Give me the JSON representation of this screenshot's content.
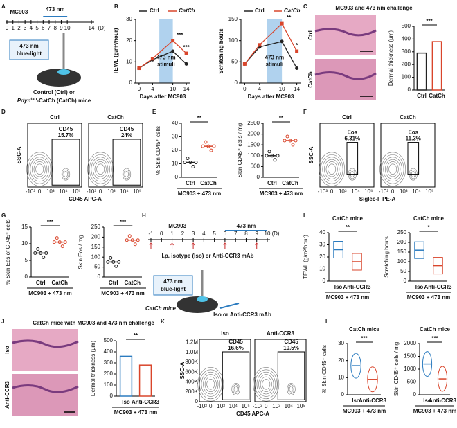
{
  "letters": [
    "A",
    "B",
    "C",
    "D",
    "E",
    "F",
    "G",
    "H",
    "I",
    "J",
    "K",
    "L"
  ],
  "a": {
    "mc903": "MC903",
    "light": "473 nm",
    "days": [
      0,
      1,
      2,
      3,
      4,
      5,
      6,
      7,
      8,
      9,
      10,
      14
    ],
    "unit": "(D)",
    "light_text": [
      "473 nm",
      "blue-light"
    ],
    "mice": [
      "Control (Ctrl) or",
      "Pdyn",
      "tau",
      "-CatCh (CatCh) mice"
    ]
  },
  "b": [
    {
      "type": "line",
      "ylabel": "TEWL (g/m²/hour)",
      "xlabel": "Days after MC903",
      "x": [
        0,
        4,
        10,
        14
      ],
      "xlim": [
        -1,
        15
      ],
      "xticks": [
        0,
        4,
        10,
        14
      ],
      "ylim": [
        0,
        30
      ],
      "yticks": [
        0,
        10,
        20,
        30
      ],
      "shade": [
        6,
        10
      ],
      "shade_label": [
        "473 nm",
        "stimuli"
      ],
      "series": [
        {
          "name": "Ctrl",
          "color": "#222222",
          "values": [
            7,
            11,
            15,
            9
          ]
        },
        {
          "name": "CatCh",
          "color": "#d9452b",
          "values": [
            7,
            11.5,
            20,
            14
          ]
        }
      ],
      "stars": [
        null,
        null,
        "***",
        "***"
      ]
    },
    {
      "type": "line",
      "ylabel": "Scratching bouts",
      "xlabel": "Days after MC903",
      "x": [
        0,
        4,
        10,
        14
      ],
      "xlim": [
        -1,
        15
      ],
      "xticks": [
        0,
        4,
        10,
        14
      ],
      "ylim": [
        0,
        150
      ],
      "yticks": [
        0,
        50,
        100,
        150
      ],
      "shade": [
        6,
        10
      ],
      "shade_label": [
        "473 nm",
        "stimuli"
      ],
      "series": [
        {
          "name": "Ctrl",
          "color": "#222222",
          "values": [
            45,
            85,
            98,
            35
          ]
        },
        {
          "name": "CatCh",
          "color": "#d9452b",
          "values": [
            45,
            90,
            140,
            75
          ]
        }
      ],
      "stars": [
        null,
        null,
        "**",
        "*"
      ]
    }
  ],
  "c": {
    "title": "MC903 and 473 nm challenge",
    "images": [
      "Ctrl",
      "CatCh"
    ],
    "chart": {
      "type": "bar",
      "ylabel": "Dermal thickness (μm)",
      "categories": [
        "Ctrl",
        "CatCh"
      ],
      "colors": [
        "#222222",
        "#d9452b"
      ],
      "values": [
        290,
        380
      ],
      "ylim": [
        0,
        500
      ],
      "yticks": [
        0,
        100,
        200,
        300,
        400,
        500
      ],
      "stars": "***"
    }
  },
  "d": {
    "ylabel": "SSC-A",
    "xlabel": "CD45 APC-A",
    "xticks": [
      "-10³",
      "0",
      "10³",
      "10⁴",
      "10⁵"
    ],
    "plots": [
      {
        "name": "Ctrl",
        "gate": "CD45",
        "pct": "15.7%"
      },
      {
        "name": "CatCh",
        "gate": "CD45",
        "pct": "24%"
      }
    ]
  },
  "e": [
    {
      "type": "dot",
      "ylabel": "% Skin CD45⁺ cells",
      "categories": [
        "Ctrl",
        "CatCh"
      ],
      "colors": [
        "#222222",
        "#d9452b"
      ],
      "values": [
        11,
        23
      ],
      "ylim": [
        0,
        40
      ],
      "yticks": [
        0,
        10,
        20,
        30,
        40
      ],
      "stars": "**",
      "xlabel": "MC903 + 473 nm"
    },
    {
      "type": "dot",
      "ylabel": "Skin CD45⁺ cells / mg",
      "categories": [
        "Ctrl",
        "CatCh"
      ],
      "colors": [
        "#222222",
        "#d9452b"
      ],
      "values": [
        1000,
        1700
      ],
      "ylim": [
        0,
        2500
      ],
      "yticks": [
        0,
        500,
        1000,
        1500,
        2000,
        2500
      ],
      "stars": "**",
      "xlabel": "MC903 + 473 nm"
    }
  ],
  "f": {
    "ylabel": "SSC-A",
    "xlabel": "Siglec-F PE-A",
    "xticks": [
      "-10³",
      "0",
      "10³",
      "10⁴",
      "10⁵"
    ],
    "plots": [
      {
        "name": "Ctrl",
        "gate": "Eos",
        "pct": "6.31%"
      },
      {
        "name": "CatCh",
        "gate": "Eos",
        "pct": "11.3%"
      }
    ]
  },
  "g": [
    {
      "type": "dot",
      "ylabel": "% Skin Eos of CD45⁺ cells",
      "categories": [
        "Ctrl",
        "CatCh"
      ],
      "colors": [
        "#222222",
        "#d9452b"
      ],
      "values": [
        7.2,
        10.5
      ],
      "ylim": [
        0,
        15
      ],
      "yticks": [
        0,
        5,
        10,
        15
      ],
      "stars": "***",
      "xlabel": "MC903 + 473 nm"
    },
    {
      "type": "dot",
      "ylabel": "Skin Eos / mg",
      "categories": [
        "Ctrl",
        "CatCh"
      ],
      "colors": [
        "#222222",
        "#d9452b"
      ],
      "values": [
        75,
        185
      ],
      "ylim": [
        0,
        250
      ],
      "yticks": [
        0,
        50,
        100,
        150,
        200,
        250
      ],
      "stars": "***",
      "xlabel": "MC903 + 473 nm"
    }
  ],
  "h": {
    "mc903": "MC903",
    "light": "473 nm",
    "days": [
      -1,
      0,
      1,
      2,
      3,
      4,
      5,
      6,
      7,
      8,
      9,
      10
    ],
    "unit": "(D)",
    "injection_days": [
      -1,
      1,
      3,
      6,
      9
    ],
    "injection": "I.p. isotype (Iso) or Anti-CCR3 mAb",
    "light_text": [
      "473 nm",
      "blue-light"
    ],
    "mice": "CatCh mice",
    "treatment": "Iso or Anti-CCR3 mAb"
  },
  "i": [
    {
      "type": "box",
      "title": "CatCh mice",
      "ylabel": "TEWL (g/m²/hour)",
      "categories": [
        "Iso",
        "Anti-CCR3"
      ],
      "colors": [
        "#2b7bbf",
        "#d9452b"
      ],
      "values": [
        26,
        16
      ],
      "ylim": [
        0,
        40
      ],
      "yticks": [
        0,
        10,
        20,
        30,
        40
      ],
      "stars": "**",
      "xlabel": "MC903 + 473 nm"
    },
    {
      "type": "box",
      "title": "CatCh mice",
      "ylabel": "Scratching bouts",
      "categories": [
        "Iso",
        "Anti-CCR3"
      ],
      "colors": [
        "#2b7bbf",
        "#d9452b"
      ],
      "values": [
        160,
        80
      ],
      "ylim": [
        0,
        250
      ],
      "yticks": [
        0,
        50,
        100,
        150,
        200,
        250
      ],
      "stars": "*",
      "xlabel": "MC903 + 473 nm"
    }
  ],
  "j": {
    "title": "CatCh mice with MC903 and 473 nm challenge",
    "images": [
      "Iso",
      "Anti-CCR3"
    ],
    "chart": {
      "type": "bar",
      "ylabel": "Dermal thickness (μm)",
      "categories": [
        "Iso",
        "Anti-CCR3"
      ],
      "colors": [
        "#2b7bbf",
        "#d9452b"
      ],
      "values": [
        360,
        280
      ],
      "ylim": [
        0,
        500
      ],
      "yticks": [
        0,
        100,
        200,
        300,
        400,
        500
      ],
      "stars": "**",
      "xlabel": "MC903 + 473 nm"
    }
  },
  "k": {
    "ylabel": "SSC-A",
    "xlabel": "CD45 APC-A",
    "xticks": [
      "-10³",
      "0",
      "10³",
      "10⁴",
      "10⁵"
    ],
    "yticks": [
      "0",
      "200K",
      "400K",
      "600K",
      "800K",
      "1.0M",
      "1.2M"
    ],
    "plots": [
      {
        "name": "Iso",
        "gate": "CD45",
        "pct": "16.6%"
      },
      {
        "name": "Anti-CCR3",
        "gate": "CD45",
        "pct": "10.5%"
      }
    ]
  },
  "l": [
    {
      "type": "violin",
      "title": "CatCh mice",
      "ylabel": "% Skin CD45⁺ cells",
      "categories": [
        "Iso",
        "Anti-CCR3"
      ],
      "colors": [
        "#2b7bbf",
        "#d9452b"
      ],
      "values": [
        17,
        9
      ],
      "ylim": [
        0,
        30
      ],
      "yticks": [
        0,
        10,
        20,
        30
      ],
      "stars": "***",
      "xlabel": "MC903 + 473 nm"
    },
    {
      "type": "violin",
      "title": "CatCh mice",
      "ylabel": "Skin CD45⁺ cells / mg",
      "categories": [
        "Iso",
        "Anti-CCR3"
      ],
      "colors": [
        "#2b7bbf",
        "#d9452b"
      ],
      "values": [
        1200,
        620
      ],
      "ylim": [
        0,
        2000
      ],
      "yticks": [
        0,
        500,
        1000,
        1500,
        2000
      ],
      "stars": "***",
      "xlabel": "MC903 + 473 nm"
    }
  ]
}
